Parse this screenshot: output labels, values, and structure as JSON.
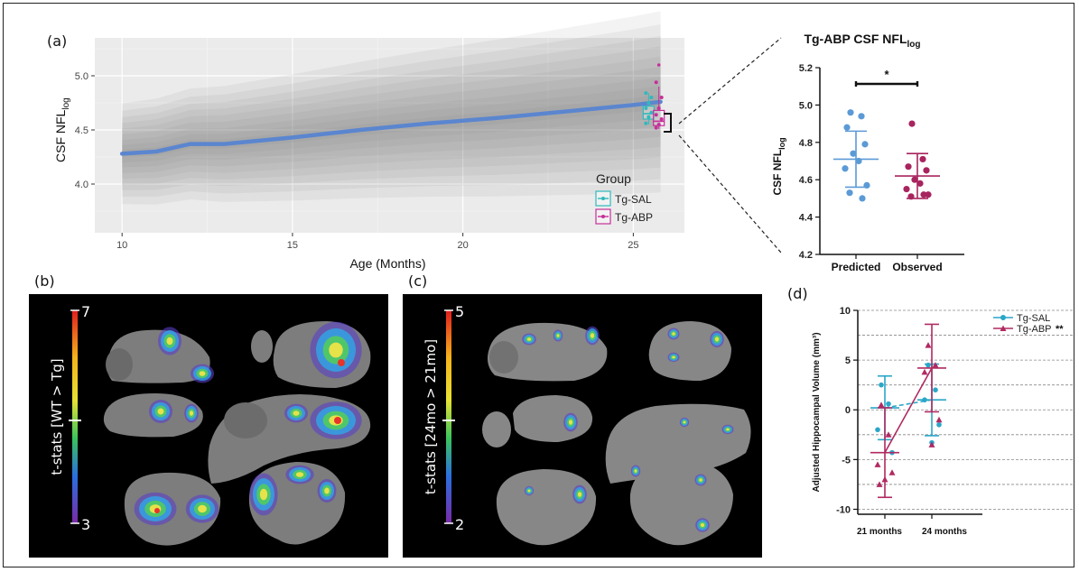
{
  "panels": {
    "a": "(a)",
    "b": "(b)",
    "c": "(c)",
    "d": "(d)"
  },
  "colors": {
    "line": "#5b86cf",
    "sal": "#2fb9bd",
    "abp": "#c72e9a",
    "predicted": "#5b9ad6",
    "observed": "#a8245f",
    "d_sal": "#2aa6c8",
    "d_abp": "#b02a62"
  },
  "chart_data": [
    {
      "id": "a",
      "type": "line",
      "xlabel": "Age (Months)",
      "ylabel_main": "CSF NFL",
      "ylabel_sub": "log",
      "xlim": [
        9.2,
        26.5
      ],
      "ylim": [
        3.55,
        5.35
      ],
      "xticks": [
        "10",
        "15",
        "20",
        "25"
      ],
      "xtick_values": [
        10,
        15,
        20,
        25
      ],
      "yticks": [
        "4.0",
        "4.5",
        "5.0"
      ],
      "ytick_values": [
        4.0,
        4.5,
        5.0
      ],
      "grid": true,
      "trend": {
        "x": [
          10,
          11,
          12,
          13,
          15,
          17,
          19,
          21,
          23,
          25,
          25.8
        ],
        "y": [
          4.28,
          4.3,
          4.37,
          4.37,
          4.43,
          4.5,
          4.56,
          4.61,
          4.67,
          4.73,
          4.76
        ]
      },
      "legend": {
        "title": "Group",
        "items": [
          "Tg-SAL",
          "Tg-ABP"
        ],
        "position": "bottom-right"
      },
      "boxes": [
        {
          "name": "Tg-SAL",
          "x": 25.45,
          "q1": 4.6,
          "median": 4.65,
          "q3": 4.72,
          "min": 4.55,
          "max": 4.84,
          "points": [
            4.56,
            4.62,
            4.66,
            4.7,
            4.75,
            4.8,
            4.84
          ]
        },
        {
          "name": "Tg-ABP",
          "x": 25.75,
          "q1": 4.54,
          "median": 4.58,
          "q3": 4.68,
          "min": 4.51,
          "max": 4.9,
          "outliers": [
            5.1
          ],
          "points": [
            4.52,
            4.55,
            4.6,
            4.64,
            4.7,
            4.8,
            4.94
          ]
        }
      ]
    },
    {
      "id": "a-inset",
      "type": "scatter",
      "title_main": "Tg-ABP CSF NFL",
      "title_sub": "log",
      "ylabel_main": "CSF NFL",
      "ylabel_sub": "log",
      "categories": [
        "Predicted",
        "Observed"
      ],
      "ylim": [
        4.2,
        5.2
      ],
      "yticks": [
        "4.2",
        "4.4",
        "4.6",
        "4.8",
        "5.0",
        "5.2"
      ],
      "ytick_values": [
        4.2,
        4.4,
        4.6,
        4.8,
        5.0,
        5.2
      ],
      "significance": "*",
      "series": [
        {
          "category": "Predicted",
          "mean": 4.71,
          "sd": 0.15,
          "values": [
            4.96,
            4.94,
            4.88,
            4.79,
            4.74,
            4.7,
            4.66,
            4.57,
            4.53,
            4.5
          ]
        },
        {
          "category": "Observed",
          "mean": 4.62,
          "sd": 0.12,
          "values": [
            4.9,
            4.71,
            4.67,
            4.65,
            4.6,
            4.58,
            4.55,
            4.52,
            4.51,
            4.52
          ]
        }
      ]
    },
    {
      "id": "d",
      "type": "line",
      "ylabel": "Adjusted Hippocampal Volume (mm³)",
      "categories": [
        "21 months",
        "24 months"
      ],
      "ylim": [
        -10.5,
        10
      ],
      "yticks": [
        "-10",
        "-5",
        "0",
        "5",
        "10"
      ],
      "ytick_values": [
        -10,
        -5,
        0,
        5,
        10
      ],
      "gridlines": [
        -10,
        -7.5,
        -5,
        -2.5,
        0,
        2.5,
        5,
        7.5,
        10
      ],
      "series": [
        {
          "name": "Tg-SAL",
          "mean": [
            0.2,
            1.0
          ],
          "sd": [
            3.2,
            3.6
          ],
          "points": [
            [
              2.5,
              0.6,
              -2.0,
              -4.3
            ],
            [
              4.5,
              2.0,
              1.0,
              -1.5,
              -3.3
            ]
          ]
        },
        {
          "name": "Tg-ABP",
          "legend_suffix": "**",
          "mean": [
            -4.3,
            4.2
          ],
          "sd": [
            4.5,
            4.4
          ],
          "points": [
            [
              0.5,
              -2.5,
              -5.5,
              -6.3,
              -7.0,
              -7.5
            ],
            [
              6.5,
              4.5,
              3.8,
              -1.0,
              -3.5
            ]
          ]
        }
      ]
    }
  ],
  "colorbars": [
    {
      "id": "b",
      "max": "7",
      "min": "3",
      "label": "t-stats [WT > Tg]"
    },
    {
      "id": "c",
      "max": "5",
      "min": "2",
      "label": "t-stats [24mo > 21mo]"
    }
  ]
}
